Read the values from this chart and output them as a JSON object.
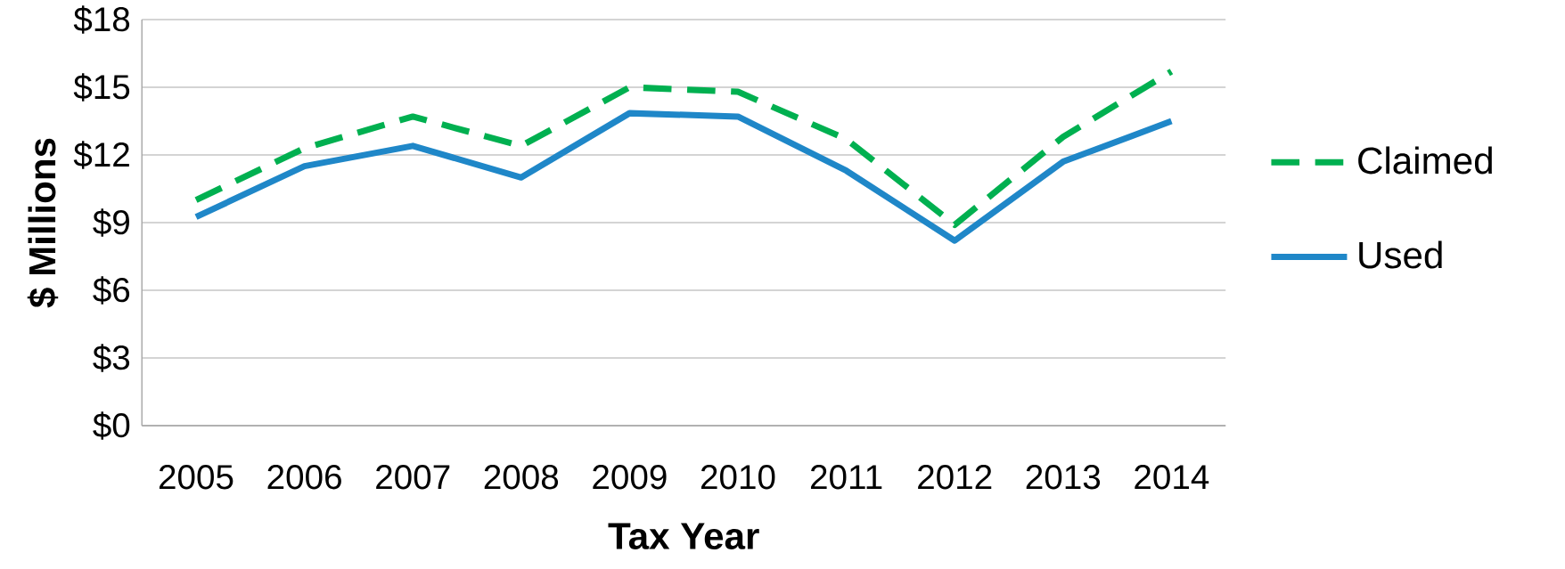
{
  "chart_data": {
    "type": "line",
    "xlabel": "Tax Year",
    "ylabel": "$ Millions",
    "categories": [
      "2005",
      "2006",
      "2007",
      "2008",
      "2009",
      "2010",
      "2011",
      "2012",
      "2013",
      "2014"
    ],
    "series": [
      {
        "name": "Claimed",
        "color": "#00b050",
        "line_style": "dashed",
        "values": [
          10.0,
          12.3,
          13.7,
          12.4,
          15.0,
          14.8,
          12.7,
          8.9,
          12.8,
          15.7
        ]
      },
      {
        "name": "Used",
        "color": "#1f87c8",
        "line_style": "solid",
        "values": [
          9.25,
          11.5,
          12.4,
          11.0,
          13.85,
          13.7,
          11.3,
          8.2,
          11.7,
          13.5
        ]
      }
    ],
    "ylim": [
      0,
      18
    ],
    "yticks": [
      {
        "value": 0,
        "label": "$0"
      },
      {
        "value": 3,
        "label": "$3"
      },
      {
        "value": 6,
        "label": "$6"
      },
      {
        "value": 9,
        "label": "$9"
      },
      {
        "value": 12,
        "label": "$12"
      },
      {
        "value": 15,
        "label": "$15"
      },
      {
        "value": 18,
        "label": "$18"
      }
    ],
    "grid": "y",
    "legend": "right",
    "marker": "none"
  }
}
